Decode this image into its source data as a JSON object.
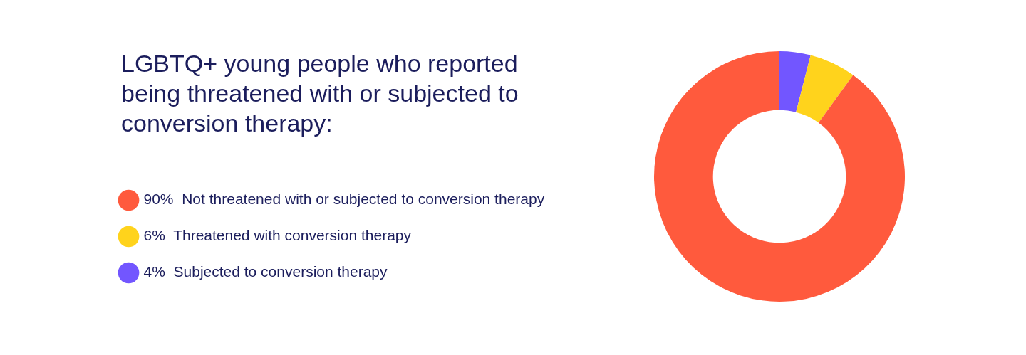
{
  "chart_data": {
    "type": "donut",
    "title": "LGBTQ+ young people who reported being threatened with or subjected to conversion therapy:",
    "categories": [
      "Not threatened with or subjected to conversion therapy",
      "Threatened with conversion therapy",
      "Subjected to conversion therapy"
    ],
    "values": [
      90,
      6,
      4
    ],
    "colors": [
      "#ff5a3d",
      "#ffd31c",
      "#7256ff"
    ],
    "value_labels": [
      "90%",
      "6%",
      "4%"
    ],
    "legend": "left"
  }
}
